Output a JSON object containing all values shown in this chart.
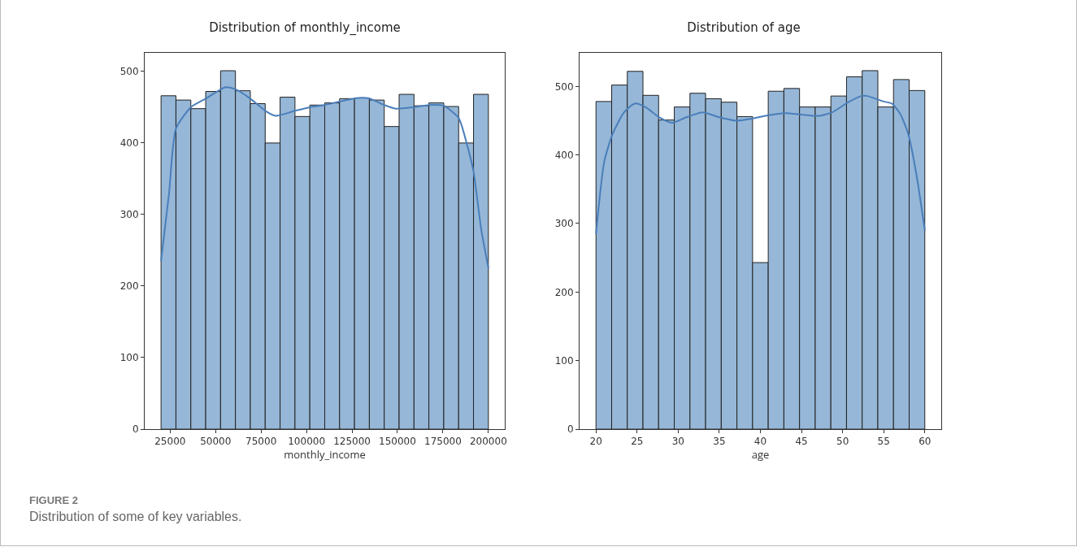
{
  "chart_data": [
    {
      "type": "histogram",
      "title": "Distribution of monthly_income",
      "xlabel": "monthly_income",
      "color": "#96b7d7",
      "bins": [
        20000,
        28182,
        36364,
        44545,
        52727,
        60909,
        69091,
        77273,
        85455,
        93636,
        101818,
        110000,
        118182,
        126364,
        134545,
        142727,
        150909,
        159091,
        167273,
        175455,
        183636,
        191818,
        200000
      ],
      "values": [
        466,
        460,
        448,
        472,
        501,
        473,
        455,
        400,
        464,
        437,
        453,
        456,
        462,
        463,
        460,
        423,
        468,
        452,
        456,
        451,
        400,
        468
      ],
      "series": [
        {
          "type": "line",
          "color": "#4a7ebb",
          "x": [
            20000,
            24400,
            28182,
            36364,
            44545,
            55500,
            60909,
            69091,
            77273,
            83000,
            93636,
            101818,
            110000,
            118182,
            129000,
            134545,
            142727,
            149000,
            159091,
            167273,
            175455,
            183636,
            188000,
            191818,
            196000,
            200000
          ],
          "values": [
            235,
            330,
            420,
            450,
            462,
            478,
            475,
            462,
            445,
            438,
            445,
            450,
            453,
            458,
            463,
            462,
            453,
            448,
            450,
            453,
            452,
            435,
            400,
            360,
            280,
            225
          ]
        }
      ],
      "xlim": [
        11000,
        209000
      ],
      "xticks": [
        25000,
        50000,
        75000,
        100000,
        125000,
        150000,
        175000,
        200000
      ],
      "ylim": [
        0,
        526
      ],
      "yticks": [
        0,
        100,
        200,
        300,
        400,
        500
      ],
      "annotations": [
        "FIGURE 2",
        "Distribution of some of key variables."
      ]
    },
    {
      "type": "histogram",
      "title": "Distribution of age",
      "xlabel": "age",
      "color": "#96b7d7",
      "bins": [
        20,
        21.905,
        23.81,
        25.714,
        27.619,
        29.524,
        31.429,
        33.333,
        35.238,
        37.143,
        39.048,
        40.952,
        42.857,
        44.762,
        46.667,
        48.571,
        50.476,
        52.381,
        54.286,
        56.19,
        58.095,
        60
      ],
      "values": [
        478,
        502,
        522,
        487,
        451,
        470,
        490,
        482,
        477,
        456,
        243,
        493,
        497,
        470,
        470,
        486,
        514,
        523,
        470,
        510,
        494
      ],
      "series": [
        {
          "type": "line",
          "color": "#4a7ebb",
          "x": [
            20,
            21,
            22,
            23.4,
            24.7,
            26,
            27.7,
            29.3,
            31,
            33,
            35,
            37,
            39,
            41,
            43,
            45,
            47,
            48.7,
            50.7,
            52.3,
            53,
            55,
            56,
            57,
            58,
            59,
            60
          ],
          "values": [
            285,
            390,
            430,
            462,
            475,
            470,
            455,
            447,
            455,
            462,
            455,
            450,
            453,
            458,
            461,
            459,
            457,
            462,
            477,
            486,
            486,
            478,
            475,
            460,
            430,
            370,
            290
          ]
        }
      ],
      "xlim": [
        18,
        62
      ],
      "xticks": [
        20,
        25,
        30,
        35,
        40,
        45,
        50,
        55,
        60
      ],
      "ylim": [
        0,
        549
      ],
      "yticks": [
        0,
        100,
        200,
        300,
        400,
        500
      ]
    }
  ]
}
